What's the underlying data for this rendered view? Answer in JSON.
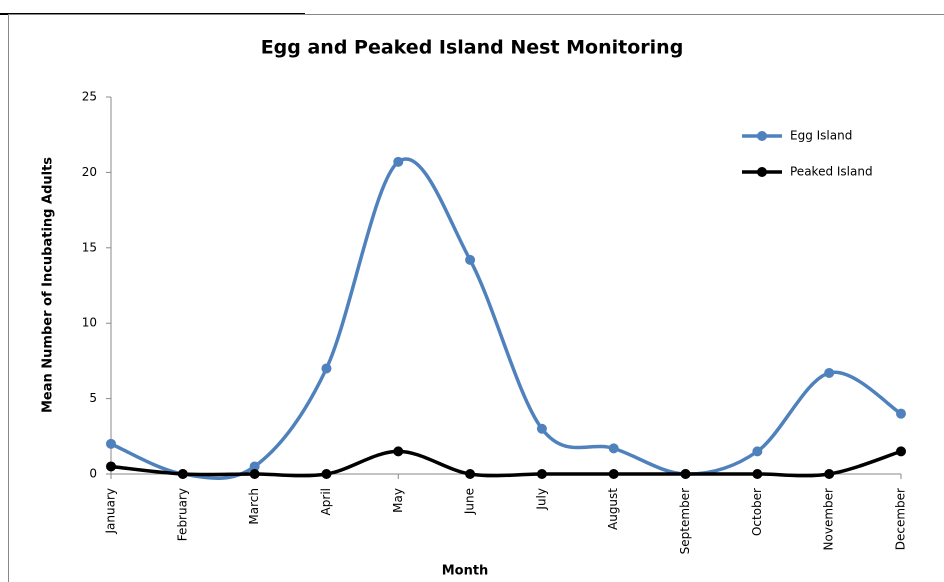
{
  "chart_data": {
    "type": "line",
    "smooth": true,
    "title": "Egg and Peaked Island Nest Monitoring",
    "x_label": "Month",
    "y_label": "Mean Number of Incubating Adults",
    "categories": [
      "January",
      "February",
      "March",
      "April",
      "May",
      "June",
      "July",
      "August",
      "September",
      "October",
      "November",
      "December"
    ],
    "series": [
      {
        "name": "Egg Island",
        "color": "#4f81bd",
        "values": [
          2,
          0,
          0.5,
          7,
          20.7,
          14.2,
          3,
          1.7,
          0,
          1.5,
          6.7,
          4
        ]
      },
      {
        "name": "Peaked Island",
        "color": "#000000",
        "values": [
          0.5,
          0,
          0,
          0,
          1.5,
          0,
          0,
          0,
          0,
          0,
          0,
          1.5
        ]
      }
    ],
    "ylim": [
      0,
      25
    ],
    "yticks": [
      0,
      5,
      10,
      15,
      20,
      25
    ],
    "grid": false,
    "legend": "top-right"
  }
}
